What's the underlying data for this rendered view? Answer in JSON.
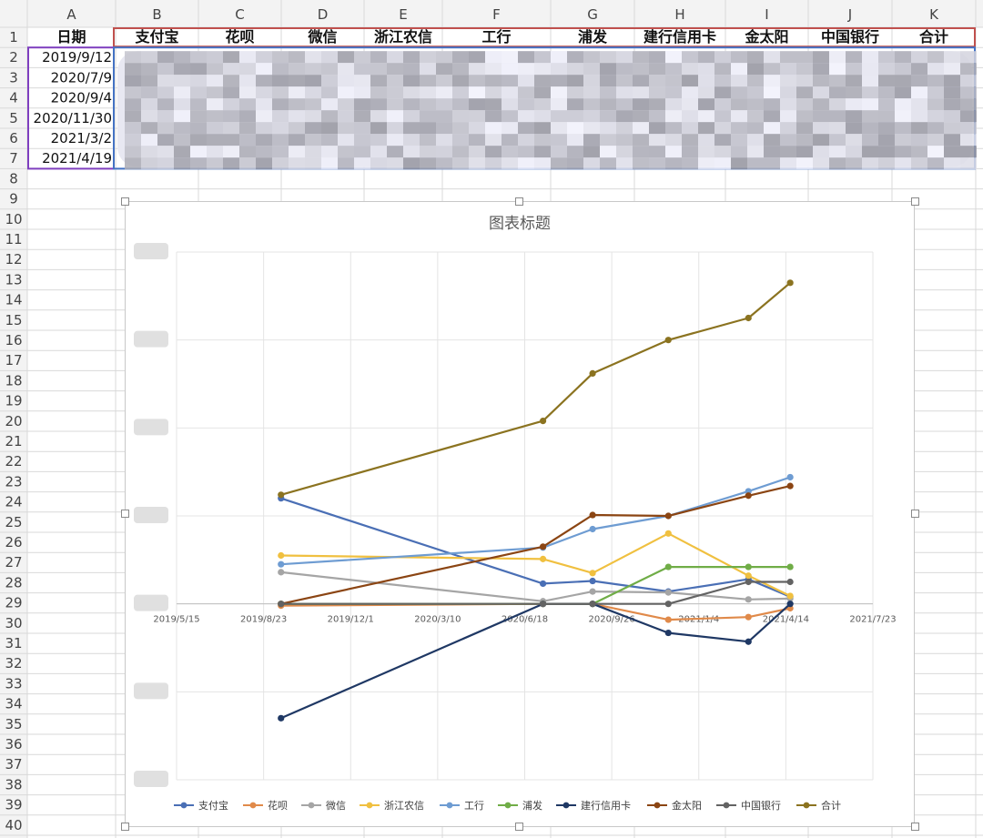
{
  "sheet": {
    "column_letters": [
      "A",
      "B",
      "C",
      "D",
      "E",
      "F",
      "G",
      "H",
      "I",
      "J",
      "K"
    ],
    "row_numbers": [
      "1",
      "2",
      "3",
      "4",
      "5",
      "6",
      "7",
      "8",
      "9",
      "10",
      "11",
      "12",
      "13",
      "14",
      "15",
      "16",
      "17",
      "18",
      "19",
      "20",
      "21",
      "22",
      "23",
      "24",
      "25",
      "26",
      "27",
      "28",
      "29",
      "30",
      "31",
      "32",
      "33",
      "34",
      "35",
      "36",
      "37",
      "38",
      "39",
      "40"
    ],
    "headers": [
      "日期",
      "支付宝",
      "花呗",
      "微信",
      "浙江农信",
      "工行",
      "浦发",
      "建行信用卡",
      "金太阳",
      "中国银行",
      "合计"
    ],
    "dates": [
      "2019/9/12",
      "2020/7/9",
      "2020/9/4",
      "2020/11/30",
      "2021/3/2",
      "2021/4/19"
    ],
    "colors": {
      "grid": "#d9d9d9",
      "header_bg": "#f3f3f3",
      "header_text": "#444444",
      "range_red": "#c0504d",
      "range_blue": "#4472c4",
      "range_purple": "#7f3fbf"
    }
  },
  "chart_data": {
    "type": "line",
    "title": "图表标题",
    "x_tick_labels": [
      "2019/5/15",
      "2019/8/23",
      "2019/12/1",
      "2020/3/10",
      "2020/6/18",
      "2020/9/26",
      "2021/1/4",
      "2021/4/14",
      "2021/7/23"
    ],
    "x_dates_days": [
      0,
      100,
      200,
      300,
      400,
      500,
      600,
      700,
      800
    ],
    "point_dates": [
      "2019/9/12",
      "2020/7/9",
      "2020/9/4",
      "2020/11/30",
      "2021/3/2",
      "2021/4/19"
    ],
    "point_days": [
      120,
      421,
      478,
      565,
      657,
      705
    ],
    "yaxis_range": [
      -2,
      4
    ],
    "series": [
      {
        "name": "支付宝",
        "color": "#4a6fb5",
        "values": [
          1.2,
          0.23,
          0.26,
          0.14,
          0.28,
          0.08
        ]
      },
      {
        "name": "花呗",
        "color": "#e08a4a",
        "values": [
          -0.02,
          0.0,
          0.0,
          -0.18,
          -0.15,
          -0.05
        ]
      },
      {
        "name": "微信",
        "color": "#a5a5a5",
        "values": [
          0.36,
          0.03,
          0.14,
          0.13,
          0.05,
          0.06
        ]
      },
      {
        "name": "浙江农信",
        "color": "#f0c040",
        "values": [
          0.55,
          0.51,
          0.35,
          0.8,
          0.32,
          0.09
        ]
      },
      {
        "name": "工行",
        "color": "#6e9cd2",
        "values": [
          0.45,
          0.64,
          0.85,
          1.0,
          1.28,
          1.44
        ]
      },
      {
        "name": "浦发",
        "color": "#70ad47",
        "values": [
          0.0,
          0.0,
          0.0,
          0.42,
          0.42,
          0.42
        ]
      },
      {
        "name": "建行信用卡",
        "color": "#1f3864",
        "values": [
          -1.3,
          0.0,
          0.0,
          -0.33,
          -0.43,
          0.0
        ]
      },
      {
        "name": "金太阳",
        "color": "#8b4513",
        "values": [
          0.0,
          0.65,
          1.01,
          1.0,
          1.23,
          1.34
        ]
      },
      {
        "name": "中国银行",
        "color": "#636363",
        "values": [
          0.0,
          0.0,
          0.0,
          0.0,
          0.25,
          0.25
        ]
      },
      {
        "name": "合计",
        "color": "#8b7320",
        "values": [
          1.24,
          2.08,
          2.62,
          3.0,
          3.25,
          3.65
        ]
      }
    ]
  }
}
